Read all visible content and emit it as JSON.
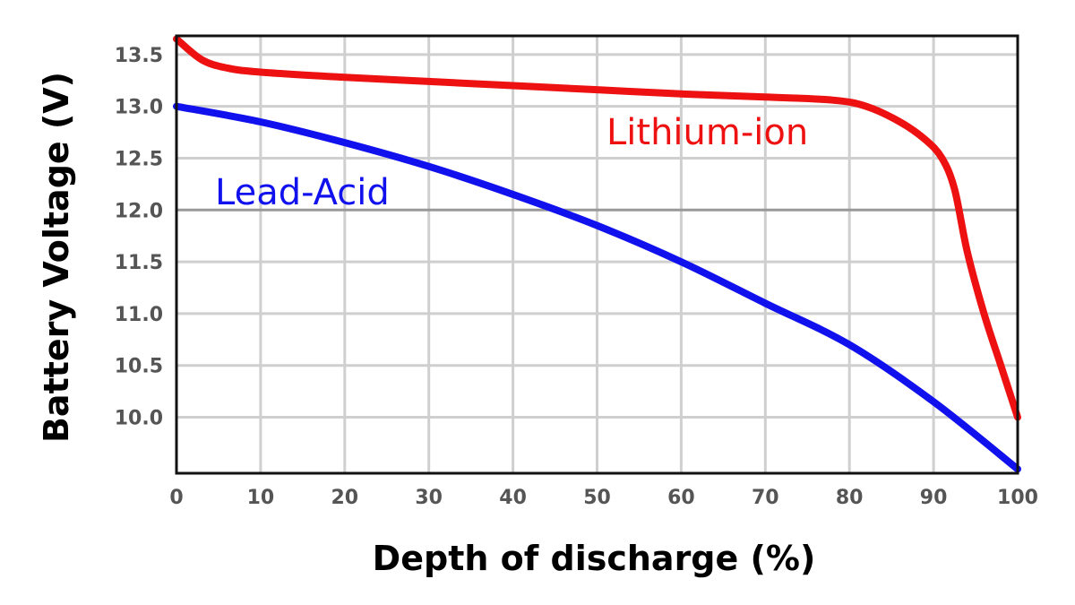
{
  "chart_data": {
    "type": "line",
    "title": "",
    "xlabel": "Depth of discharge (%)",
    "ylabel": "Battery Voltage (V)",
    "xlim": [
      0,
      100
    ],
    "ylim": [
      9.46,
      13.68
    ],
    "xticks": [
      "0",
      "10",
      "20",
      "30",
      "40",
      "50",
      "60",
      "70",
      "80",
      "90",
      "100"
    ],
    "yticks": [
      "10.0",
      "10.5",
      "11.0",
      "11.5",
      "12.0",
      "12.5",
      "13.0",
      "13.5"
    ],
    "grid": true,
    "series": [
      {
        "name": "Lithium-ion",
        "color": "#ee1111",
        "x": [
          0,
          3,
          6,
          10,
          20,
          30,
          40,
          50,
          60,
          70,
          78,
          82,
          86,
          89,
          91,
          92.5,
          94,
          96,
          98,
          100
        ],
        "y": [
          13.65,
          13.45,
          13.37,
          13.33,
          13.28,
          13.24,
          13.2,
          13.16,
          13.12,
          13.09,
          13.06,
          13.0,
          12.85,
          12.68,
          12.5,
          12.2,
          11.6,
          11.0,
          10.5,
          10.0
        ]
      },
      {
        "name": "Lead-Acid",
        "color": "#1111ee",
        "x": [
          0,
          10,
          20,
          30,
          40,
          50,
          60,
          70,
          80,
          90,
          100
        ],
        "y": [
          13.0,
          12.85,
          12.65,
          12.42,
          12.15,
          11.85,
          11.5,
          11.1,
          10.7,
          10.15,
          9.5
        ]
      }
    ],
    "annotations": [
      "Lithium-ion",
      "Lead-Acid"
    ]
  }
}
